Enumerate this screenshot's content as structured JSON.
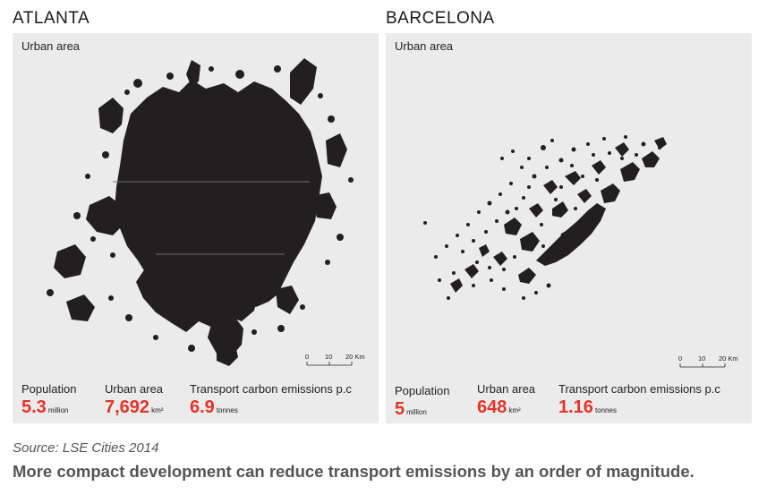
{
  "panels": [
    {
      "city": "ATLANTA",
      "map_label": "Urban area",
      "scale": {
        "ticks": [
          "0",
          "10",
          "20 Km"
        ]
      },
      "stats": [
        {
          "label": "Population",
          "value": "5.3",
          "unit": "million"
        },
        {
          "label": "Urban area",
          "value": "7,692",
          "unit": "km²"
        },
        {
          "label": "Transport carbon emissions p.c",
          "value": "6.9",
          "unit": "tonnes"
        }
      ]
    },
    {
      "city": "BARCELONA",
      "map_label": "Urban area",
      "scale": {
        "ticks": [
          "0",
          "10",
          "20 Km"
        ]
      },
      "stats": [
        {
          "label": "Population",
          "value": "5",
          "unit": "million"
        },
        {
          "label": "Urban area",
          "value": "648",
          "unit": "km²"
        },
        {
          "label": "Transport carbon emissions p.c",
          "value": "1.16",
          "unit": "tonnes"
        }
      ]
    }
  ],
  "source": "Source: LSE Cities 2014",
  "headline": "More compact development can reduce transport emissions by an order of magnitude.",
  "colors": {
    "accent": "#e0352b",
    "panel_bg": "#ebebeb",
    "urban_fill": "#231f20"
  }
}
